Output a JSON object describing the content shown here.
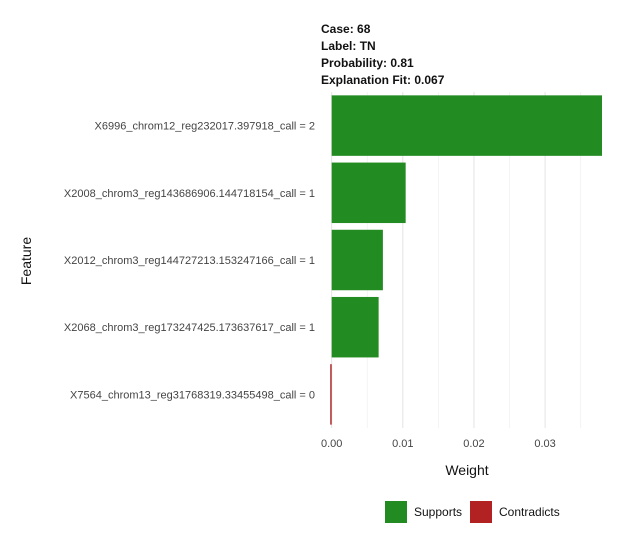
{
  "header": {
    "case_label": "Case:",
    "case_value": "68",
    "label_label": "Label:",
    "label_value": "TN",
    "prob_label": "Probability:",
    "prob_value": "0.81",
    "fit_label": "Explanation Fit:",
    "fit_value": "0.067"
  },
  "chart_data": {
    "type": "bar",
    "orientation": "horizontal",
    "title": "",
    "xlabel": "Weight",
    "ylabel": "Feature",
    "categories": [
      "X6996_chrom12_reg232017.397918_call = 2",
      "X2008_chrom3_reg143686906.144718154_call = 1",
      "X2012_chrom3_reg144727213.153247166_call = 1",
      "X2068_chrom3_reg173247425.173637617_call = 1",
      "X7564_chrom13_reg31768319.33455498_call = 0"
    ],
    "values": [
      0.038,
      0.0104,
      0.0072,
      0.0066,
      -0.0002
    ],
    "bar_groups": [
      "Supports",
      "Supports",
      "Supports",
      "Supports",
      "Contradicts"
    ],
    "xlim": [
      -0.0015,
      0.038
    ],
    "x_ticks": [
      0.0,
      0.01,
      0.02,
      0.03
    ],
    "x_tick_labels": [
      "0.00",
      "0.01",
      "0.02",
      "0.03"
    ],
    "grid": true,
    "legend": {
      "position": "bottom",
      "entries": [
        {
          "name": "Supports",
          "color": "#228B22"
        },
        {
          "name": "Contradicts",
          "color": "#B22222"
        }
      ]
    }
  }
}
